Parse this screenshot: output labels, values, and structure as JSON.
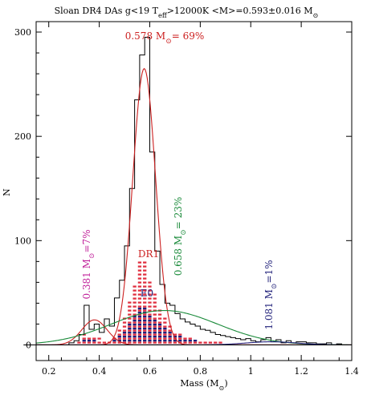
{
  "chart_data": {
    "type": "line",
    "title": "Sloan DR4 DAs g<19 T_eff>12000K <M>=0.593±0.016 M_⊙",
    "xlabel": "Mass (M_⊙)",
    "ylabel": "N",
    "xlim": [
      0.15,
      1.4
    ],
    "ylim": [
      -15,
      310
    ],
    "xticks": [
      0.2,
      0.4,
      0.6,
      0.8,
      1,
      1.2,
      1.4
    ],
    "xtick_labels": [
      "0.2",
      "0.4",
      "0.6",
      "0.8",
      "1",
      "1.2",
      "1.4"
    ],
    "yticks": [
      0,
      100,
      200,
      300
    ],
    "ytick_labels": [
      "0",
      "100",
      "200",
      "300"
    ],
    "grid": false,
    "histogram": {
      "name": "",
      "color": "#000000",
      "x": [
        0.1,
        0.28,
        0.3,
        0.32,
        0.34,
        0.36,
        0.38,
        0.4,
        0.42,
        0.44,
        0.46,
        0.48,
        0.5,
        0.52,
        0.54,
        0.56,
        0.58,
        0.6,
        0.62,
        0.64,
        0.66,
        0.68,
        0.7,
        0.72,
        0.74,
        0.76,
        0.78,
        0.8,
        0.82,
        0.84,
        0.86,
        0.88,
        0.9,
        0.92,
        0.94,
        0.96,
        0.98,
        1.0,
        1.02,
        1.04,
        1.06,
        1.08,
        1.1,
        1.12,
        1.14,
        1.16,
        1.18,
        1.2,
        1.22,
        1.24,
        1.26,
        1.28,
        1.3,
        1.32,
        1.34,
        1.36,
        1.38,
        1.4
      ],
      "y": [
        0,
        2,
        4,
        10,
        38,
        15,
        20,
        12,
        25,
        18,
        45,
        62,
        95,
        150,
        235,
        278,
        295,
        185,
        90,
        58,
        40,
        38,
        30,
        25,
        22,
        20,
        18,
        15,
        14,
        12,
        10,
        9,
        8,
        7,
        6,
        5,
        6,
        4,
        3,
        5,
        7,
        3,
        5,
        2,
        4,
        2,
        3,
        3,
        2,
        2,
        1,
        1,
        2,
        0,
        1,
        0,
        0,
        0
      ]
    },
    "histogram_dr1_red": {
      "name": "DR1",
      "color": "#e03040",
      "x": [
        0.32,
        0.34,
        0.36,
        0.38,
        0.4,
        0.42,
        0.44,
        0.46,
        0.48,
        0.5,
        0.52,
        0.54,
        0.56,
        0.58,
        0.6,
        0.62,
        0.64,
        0.66,
        0.68,
        0.7,
        0.72,
        0.74,
        0.76,
        0.78,
        0.8,
        0.82,
        0.84,
        0.86,
        0.88
      ],
      "y": [
        5,
        10,
        8,
        6,
        8,
        5,
        4,
        8,
        14,
        28,
        42,
        58,
        80,
        80,
        62,
        48,
        35,
        26,
        18,
        12,
        10,
        8,
        6,
        5,
        4,
        3,
        3,
        2,
        2
      ]
    },
    "histogram_e0_blue": {
      "name": "E0",
      "color": "#20207a",
      "x": [
        0.32,
        0.34,
        0.36,
        0.38,
        0.4,
        0.42,
        0.44,
        0.46,
        0.48,
        0.5,
        0.52,
        0.54,
        0.56,
        0.58,
        0.6,
        0.62,
        0.64,
        0.66,
        0.68,
        0.7,
        0.72,
        0.74,
        0.76,
        0.78,
        0.8,
        0.82,
        0.84,
        0.86,
        0.88,
        0.9,
        0.92,
        0.94,
        0.96,
        0.98,
        1.0
      ],
      "y": [
        2,
        4,
        5,
        4,
        3,
        3,
        2,
        5,
        8,
        14,
        22,
        30,
        38,
        36,
        30,
        26,
        20,
        16,
        12,
        10,
        8,
        6,
        5,
        4,
        3,
        3,
        2,
        2,
        2,
        1,
        1,
        1,
        1,
        1,
        1
      ]
    },
    "gaussian_fits": [
      {
        "name": "",
        "color": "#cc2020",
        "center": 0.578,
        "sigma": 0.045,
        "amplitude": 265
      },
      {
        "name": "",
        "color": "#cc2020",
        "center": 0.381,
        "sigma": 0.05,
        "amplitude": 24
      },
      {
        "name": "",
        "color": "#1a8a3a",
        "center": 0.658,
        "sigma": 0.21,
        "amplitude": 33
      },
      {
        "name": "",
        "color": "#20207a",
        "center": 1.081,
        "sigma": 0.1,
        "amplitude": 3
      }
    ],
    "annotations": [
      {
        "text": "0.578 M_⊙= 69%",
        "color": "#cc2020"
      },
      {
        "text": "0.381 M_⊙=7%",
        "color": "#c0209a"
      },
      {
        "text": "0.658 M_⊙= 23%",
        "color": "#1a8a3a"
      },
      {
        "text": "1.081 M_⊙=1%",
        "color": "#20207a"
      },
      {
        "text": "DR1",
        "color": "#cc2020"
      },
      {
        "text": "E0",
        "color": "#20207a"
      }
    ]
  }
}
